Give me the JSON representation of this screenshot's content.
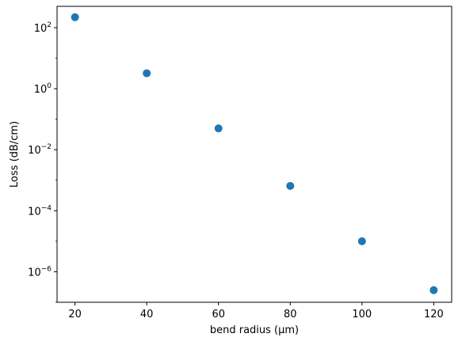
{
  "chart_data": {
    "type": "scatter",
    "title": "",
    "xlabel": "bend radius (μm)",
    "ylabel": "Loss (dB/cm)",
    "x": [
      20,
      40,
      60,
      80,
      100,
      120
    ],
    "series": [
      {
        "values": [
          220,
          3.2,
          0.05,
          0.00065,
          1e-05,
          2.5e-07
        ],
        "color": "#1f77b4"
      }
    ],
    "xlim": [
      15,
      125
    ],
    "ylim": [
      1e-07,
      500
    ],
    "yscale": "log",
    "x_ticks": [
      {
        "value": 20,
        "label": "20"
      },
      {
        "value": 40,
        "label": "40"
      },
      {
        "value": 60,
        "label": "60"
      },
      {
        "value": 80,
        "label": "80"
      },
      {
        "value": 100,
        "label": "100"
      },
      {
        "value": 120,
        "label": "120"
      }
    ],
    "y_ticks": [
      {
        "value": 1e-06,
        "base": "10",
        "exp": "−6"
      },
      {
        "value": 0.0001,
        "base": "10",
        "exp": "−4"
      },
      {
        "value": 0.01,
        "base": "10",
        "exp": "−2"
      },
      {
        "value": 1,
        "base": "10",
        "exp": "0"
      },
      {
        "value": 100,
        "base": "10",
        "exp": "2"
      }
    ],
    "grid": false,
    "legend": "none"
  }
}
